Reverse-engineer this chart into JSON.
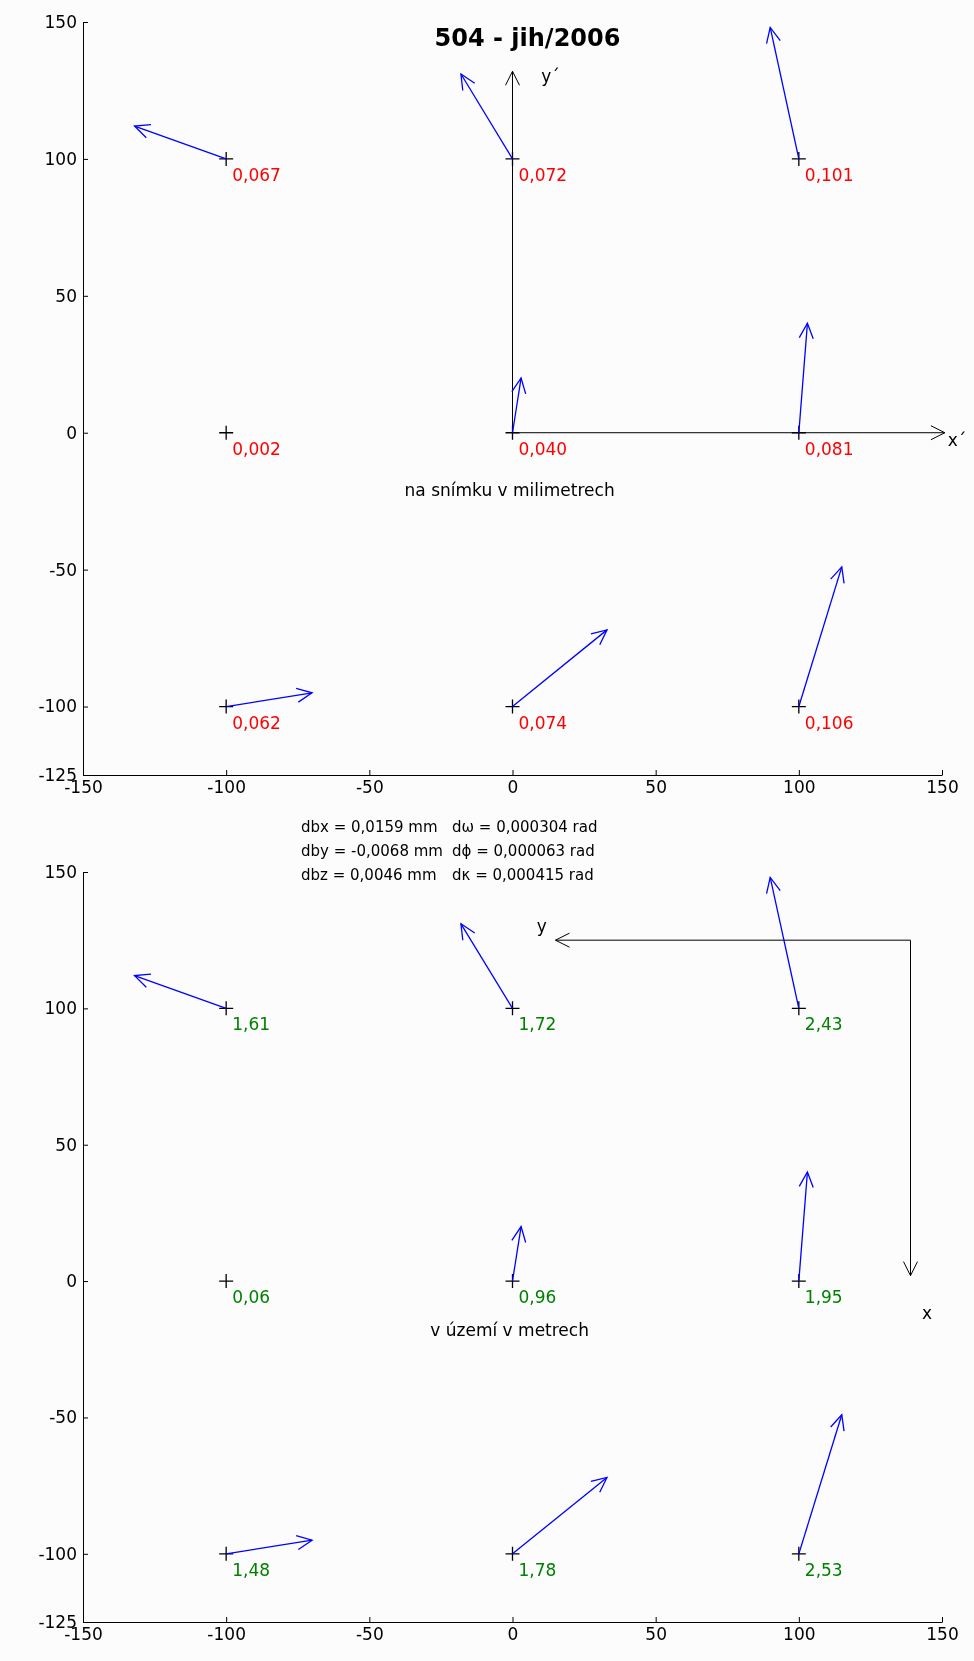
{
  "chart_data": [
    {
      "type": "scatter",
      "title": "504 - jih/2006",
      "xlim": [
        -150,
        150
      ],
      "ylim": [
        -125,
        150
      ],
      "xticks": [
        -150,
        -100,
        -50,
        0,
        50,
        100,
        150
      ],
      "yticks": [
        -125,
        -100,
        -50,
        0,
        50,
        100,
        150
      ],
      "annotations": [
        "x´",
        "y´",
        "na snímku v milimetrech",
        "dbx = 0,0159 mm",
        "dby = -0,0068 mm",
        "dbz = 0,0046 mm",
        "dω = 0,000304 rad",
        "dϕ = 0,000063 rad",
        "dκ = 0,000415 rad",
        {
          "text": "0,067",
          "x": -100,
          "y": 100
        },
        {
          "text": "0,072",
          "x": 0,
          "y": 100
        },
        {
          "text": "0,101",
          "x": 100,
          "y": 100
        },
        {
          "text": "0,002",
          "x": -100,
          "y": 0
        },
        {
          "text": "0,040",
          "x": 0,
          "y": 0
        },
        {
          "text": "0,081",
          "x": 100,
          "y": 0
        },
        {
          "text": "0,062",
          "x": -100,
          "y": -100
        },
        {
          "text": "0,074",
          "x": 0,
          "y": -100
        },
        {
          "text": "0,106",
          "x": 100,
          "y": -100
        }
      ],
      "series": [
        {
          "type": "scatter",
          "color": "#000000",
          "marker": "cross",
          "x": [
            -100,
            0,
            100,
            -100,
            0,
            100,
            -100,
            0,
            100
          ],
          "values": [
            100,
            100,
            100,
            0,
            0,
            0,
            -100,
            -100,
            -100
          ]
        },
        {
          "type": "line",
          "color": "#0000ff",
          "x": [
            -100,
            -132
          ],
          "values": [
            100,
            112
          ]
        },
        {
          "type": "line",
          "color": "#0000ff",
          "x": [
            0,
            -18
          ],
          "values": [
            100,
            131
          ]
        },
        {
          "type": "line",
          "color": "#0000ff",
          "x": [
            100,
            90
          ],
          "values": [
            100,
            148
          ]
        },
        {
          "type": "line",
          "color": "#0000ff",
          "x": [
            0,
            3
          ],
          "values": [
            0,
            20
          ]
        },
        {
          "type": "line",
          "color": "#0000ff",
          "x": [
            100,
            103
          ],
          "values": [
            0,
            40
          ]
        },
        {
          "type": "line",
          "color": "#0000ff",
          "x": [
            -100,
            -70
          ],
          "values": [
            -100,
            -95
          ]
        },
        {
          "type": "line",
          "color": "#0000ff",
          "x": [
            0,
            33
          ],
          "values": [
            -100,
            -72
          ]
        },
        {
          "type": "line",
          "color": "#0000ff",
          "x": [
            100,
            115
          ],
          "values": [
            -100,
            -49
          ]
        }
      ]
    },
    {
      "type": "scatter",
      "xlim": [
        -150,
        150
      ],
      "ylim": [
        -125,
        150
      ],
      "xticks": [
        -150,
        -100,
        -50,
        0,
        50,
        100,
        150
      ],
      "yticks": [
        -125,
        -100,
        -50,
        0,
        50,
        100,
        150
      ],
      "annotations": [
        "y",
        "x",
        "v území v metrech",
        {
          "text": "1,61",
          "x": -100,
          "y": 100
        },
        {
          "text": "1,72",
          "x": 0,
          "y": 100
        },
        {
          "text": "2,43",
          "x": 100,
          "y": 100
        },
        {
          "text": "0,06",
          "x": -100,
          "y": 0
        },
        {
          "text": "0,96",
          "x": 0,
          "y": 0
        },
        {
          "text": "1,95",
          "x": 100,
          "y": 0
        },
        {
          "text": "1,48",
          "x": -100,
          "y": -100
        },
        {
          "text": "1,78",
          "x": 0,
          "y": -100
        },
        {
          "text": "2,53",
          "x": 100,
          "y": -100
        }
      ],
      "series": [
        {
          "type": "scatter",
          "color": "#000000",
          "marker": "cross",
          "x": [
            -100,
            0,
            100,
            -100,
            0,
            100,
            -100,
            0,
            100
          ],
          "values": [
            100,
            100,
            100,
            0,
            0,
            0,
            -100,
            -100,
            -100
          ]
        },
        {
          "type": "line",
          "color": "#0000ff",
          "x": [
            -100,
            -132
          ],
          "values": [
            100,
            112
          ]
        },
        {
          "type": "line",
          "color": "#0000ff",
          "x": [
            0,
            -18
          ],
          "values": [
            100,
            131
          ]
        },
        {
          "type": "line",
          "color": "#0000ff",
          "x": [
            100,
            90
          ],
          "values": [
            100,
            148
          ]
        },
        {
          "type": "line",
          "color": "#0000ff",
          "x": [
            0,
            3
          ],
          "values": [
            0,
            20
          ]
        },
        {
          "type": "line",
          "color": "#0000ff",
          "x": [
            100,
            103
          ],
          "values": [
            0,
            40
          ]
        },
        {
          "type": "line",
          "color": "#0000ff",
          "x": [
            -100,
            -70
          ],
          "values": [
            -100,
            -95
          ]
        },
        {
          "type": "line",
          "color": "#0000ff",
          "x": [
            0,
            33
          ],
          "values": [
            -100,
            -72
          ]
        },
        {
          "type": "line",
          "color": "#0000ff",
          "x": [
            100,
            115
          ],
          "values": [
            -100,
            -49
          ]
        }
      ]
    }
  ]
}
